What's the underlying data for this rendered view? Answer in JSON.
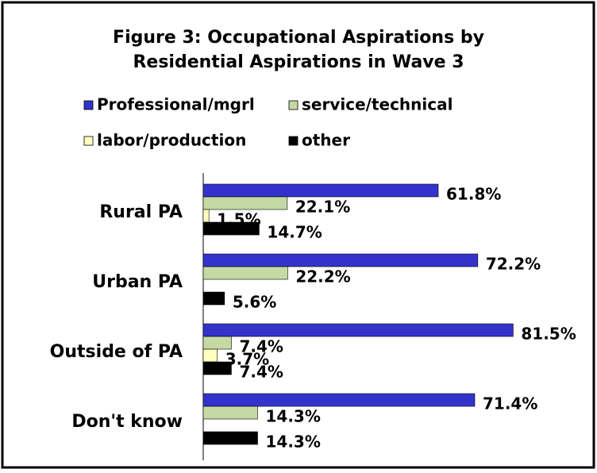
{
  "chart_data": {
    "type": "bar",
    "orientation": "horizontal",
    "title": [
      "Figure 3: Occupational Aspirations by",
      "Residential Aspirations in Wave 3"
    ],
    "categories": [
      "Rural PA",
      "Urban PA",
      "Outside of PA",
      "Don't know"
    ],
    "series": [
      {
        "name": "Professional/mgrl",
        "color": "#3333cc",
        "values": [
          61.8,
          72.2,
          81.5,
          71.4
        ],
        "value_labels": [
          "61.8%",
          "72.2%",
          "81.5%",
          "71.4%"
        ]
      },
      {
        "name": "service/technical",
        "color": "#c4d9a4",
        "values": [
          22.1,
          22.2,
          7.4,
          14.3
        ],
        "value_labels": [
          "22.1%",
          "22.2%",
          "7.4%",
          "14.3%"
        ]
      },
      {
        "name": "labor/production",
        "color": "#ffffc0",
        "values": [
          1.5,
          null,
          3.7,
          null
        ],
        "value_labels": [
          "1.5%",
          null,
          "3.7%",
          null
        ]
      },
      {
        "name": "other",
        "color": "#000000",
        "values": [
          14.7,
          5.6,
          7.4,
          14.3
        ],
        "value_labels": [
          "14.7%",
          "5.6%",
          "7.4%",
          "14.3%"
        ]
      }
    ]
  }
}
